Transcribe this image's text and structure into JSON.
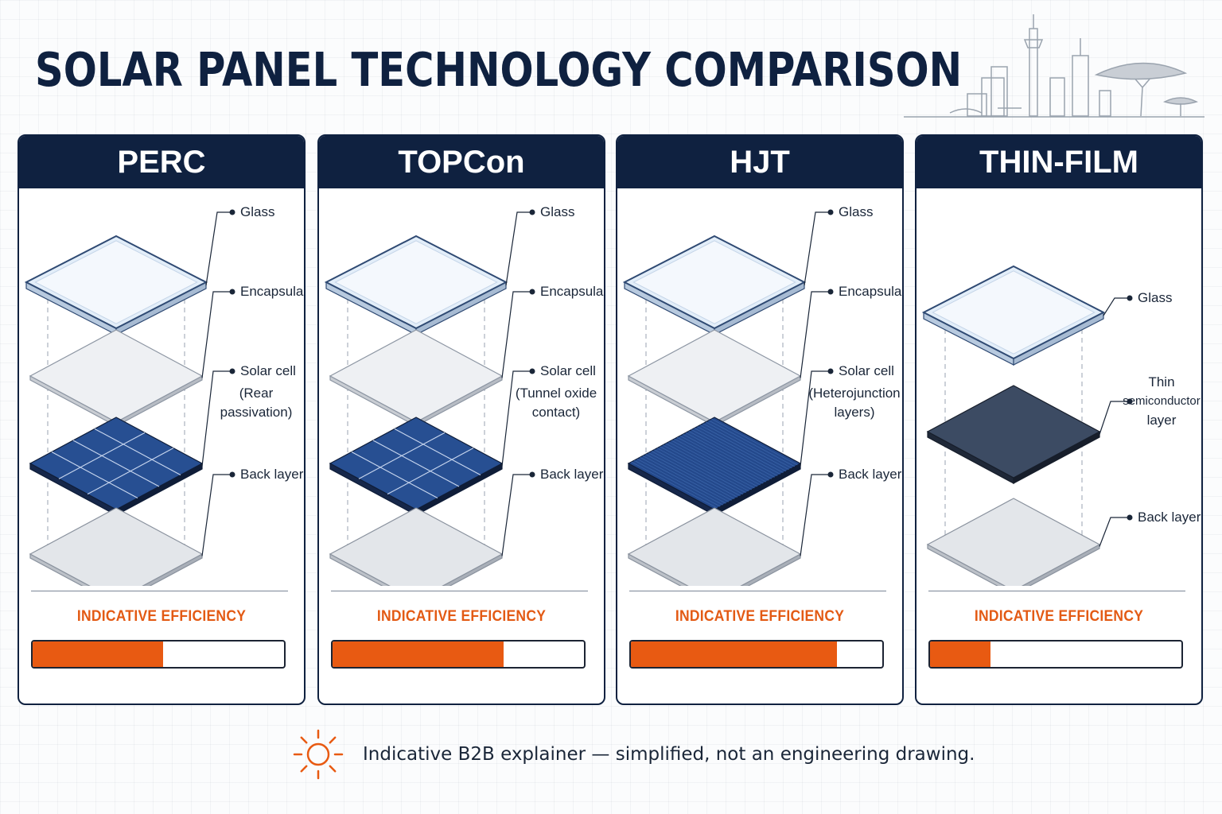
{
  "title": "SOLAR PANEL TECHNOLOGY COMPARISON",
  "efficiency_label": "INDICATIVE EFFICIENCY",
  "footer": "Indicative B2B explainer — simplified, not an engineering drawing.",
  "colors": {
    "navy": "#0f2140",
    "accent_orange": "#e85a12",
    "glass": "#e3eef9",
    "cell_blue": "#274f92",
    "thin_film": "#3c4b63"
  },
  "panels": [
    {
      "name": "PERC",
      "efficiency_fraction": 0.52,
      "layers": [
        {
          "label": "Glass",
          "type": "glass"
        },
        {
          "label": "Encapsulant",
          "type": "encapsulant"
        },
        {
          "label": "Solar cell",
          "sublabel_lines": [
            "(Rear",
            "passivation)"
          ],
          "type": "cell-grid"
        },
        {
          "label": "Back layer",
          "type": "back"
        }
      ]
    },
    {
      "name": "TOPCon",
      "efficiency_fraction": 0.68,
      "layers": [
        {
          "label": "Glass",
          "type": "glass"
        },
        {
          "label": "Encapsulant",
          "type": "encapsulant"
        },
        {
          "label": "Solar cell",
          "sublabel_lines": [
            "(Tunnel oxide",
            "contact)"
          ],
          "type": "cell-grid"
        },
        {
          "label": "Back layer",
          "type": "back"
        }
      ]
    },
    {
      "name": "HJT",
      "efficiency_fraction": 0.82,
      "layers": [
        {
          "label": "Glass",
          "type": "glass"
        },
        {
          "label": "Encapsulant",
          "type": "encapsulant"
        },
        {
          "label": "Solar cell",
          "sublabel_lines": [
            "(Heterojunction",
            "layers)"
          ],
          "type": "cell-fine"
        },
        {
          "label": "Back layer",
          "type": "back"
        }
      ]
    },
    {
      "name": "THIN-FILM",
      "efficiency_fraction": 0.24,
      "layers": [
        {
          "label": "Glass",
          "type": "glass"
        },
        {
          "label_lines": [
            "Thin",
            "semiconductor",
            "layer"
          ],
          "type": "thin-film"
        },
        {
          "label": "Back layer",
          "type": "back"
        }
      ]
    }
  ]
}
